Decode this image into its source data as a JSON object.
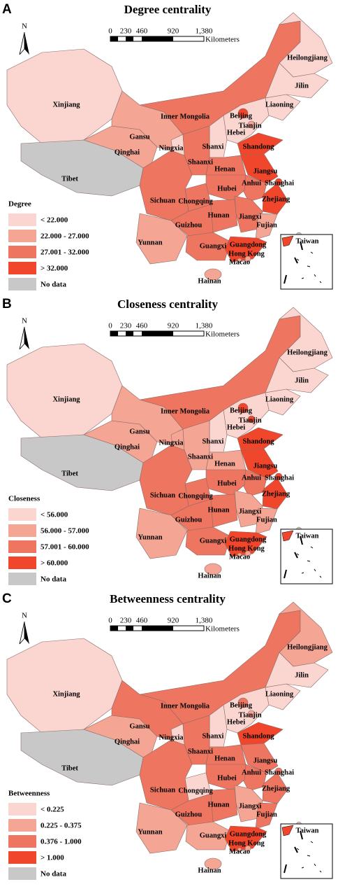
{
  "panels": [
    {
      "label": "A",
      "title": "Degree centrality",
      "north": "N",
      "scale": {
        "ticks": [
          "0",
          "230",
          "460",
          "920",
          "1,380"
        ],
        "unit": "Kilometers"
      },
      "legend": {
        "title": "Degree",
        "items": [
          {
            "label": "< 22.000",
            "color": "#fbd6d0"
          },
          {
            "label": "22.000 - 27.000",
            "color": "#f5a594"
          },
          {
            "label": "27.001 - 32.000",
            "color": "#ee7560"
          },
          {
            "label": "> 32.000",
            "color": "#f0462c"
          },
          {
            "label": "No data",
            "color": "#c8c8c8"
          }
        ]
      },
      "regions": [
        {
          "name": "Xinjiang",
          "color": "#fbd6d0"
        },
        {
          "name": "Tibet",
          "color": "#c8c8c8"
        },
        {
          "name": "Qinghai",
          "color": "#f5a594"
        },
        {
          "name": "Gansu",
          "color": "#f5a594"
        },
        {
          "name": "Inner Mongolia",
          "color": "#ee7560"
        },
        {
          "name": "Heilongjiang",
          "color": "#fbd6d0"
        },
        {
          "name": "Jilin",
          "color": "#fbd6d0"
        },
        {
          "name": "Liaoning",
          "color": "#fbd6d0"
        },
        {
          "name": "Hebei",
          "color": "#fbd6d0"
        },
        {
          "name": "Beijing",
          "color": "#f0462c"
        },
        {
          "name": "Tianjin",
          "color": "#f5a594"
        },
        {
          "name": "Shanxi",
          "color": "#fbd6d0"
        },
        {
          "name": "Ningxia",
          "color": "#fbd6d0"
        },
        {
          "name": "Shaanxi",
          "color": "#ee7560"
        },
        {
          "name": "Shandong",
          "color": "#f0462c"
        },
        {
          "name": "Henan",
          "color": "#ee7560"
        },
        {
          "name": "Jiangsu",
          "color": "#f0462c"
        },
        {
          "name": "Anhui",
          "color": "#ee7560"
        },
        {
          "name": "Shanghai",
          "color": "#f0462c"
        },
        {
          "name": "Zhejiang",
          "color": "#f0462c"
        },
        {
          "name": "Hubei",
          "color": "#ee7560"
        },
        {
          "name": "Chongqing",
          "color": "#ee7560"
        },
        {
          "name": "Sichuan",
          "color": "#ee7560"
        },
        {
          "name": "Hunan",
          "color": "#ee7560"
        },
        {
          "name": "Jiangxi",
          "color": "#ee7560"
        },
        {
          "name": "Fujian",
          "color": "#f5a594"
        },
        {
          "name": "Guizhou",
          "color": "#ee7560"
        },
        {
          "name": "Yunnan",
          "color": "#f5a594"
        },
        {
          "name": "Guangxi",
          "color": "#ee7560"
        },
        {
          "name": "Guangdong",
          "color": "#f0462c"
        },
        {
          "name": "Hainan",
          "color": "#f5a594"
        },
        {
          "name": "Taiwan",
          "color": "#c8c8c8"
        },
        {
          "name": "Hong Kong",
          "color": "#f5a594"
        },
        {
          "name": "Macao",
          "color": "#f5a594"
        }
      ]
    },
    {
      "label": "B",
      "title": "Closeness centrality",
      "north": "N",
      "scale": {
        "ticks": [
          "0",
          "230",
          "460",
          "920",
          "1,380"
        ],
        "unit": "Kilometers"
      },
      "legend": {
        "title": "Closeness",
        "items": [
          {
            "label": "< 56.000",
            "color": "#fbd6d0"
          },
          {
            "label": "56.000 - 57.000",
            "color": "#f5a594"
          },
          {
            "label": "57.001 - 60.000",
            "color": "#ee7560"
          },
          {
            "label": "> 60.000",
            "color": "#f0462c"
          },
          {
            "label": "No data",
            "color": "#c8c8c8"
          }
        ]
      },
      "regions": [
        {
          "name": "Xinjiang",
          "color": "#fbd6d0"
        },
        {
          "name": "Tibet",
          "color": "#c8c8c8"
        },
        {
          "name": "Qinghai",
          "color": "#f5a594"
        },
        {
          "name": "Gansu",
          "color": "#f5a594"
        },
        {
          "name": "Inner Mongolia",
          "color": "#ee7560"
        },
        {
          "name": "Heilongjiang",
          "color": "#fbd6d0"
        },
        {
          "name": "Jilin",
          "color": "#fbd6d0"
        },
        {
          "name": "Liaoning",
          "color": "#fbd6d0"
        },
        {
          "name": "Hebei",
          "color": "#fbd6d0"
        },
        {
          "name": "Beijing",
          "color": "#f0462c"
        },
        {
          "name": "Tianjin",
          "color": "#f0462c"
        },
        {
          "name": "Shanxi",
          "color": "#fbd6d0"
        },
        {
          "name": "Ningxia",
          "color": "#f5a594"
        },
        {
          "name": "Shaanxi",
          "color": "#f5a594"
        },
        {
          "name": "Shandong",
          "color": "#f0462c"
        },
        {
          "name": "Henan",
          "color": "#f5a594"
        },
        {
          "name": "Jiangsu",
          "color": "#f0462c"
        },
        {
          "name": "Anhui",
          "color": "#ee7560"
        },
        {
          "name": "Shanghai",
          "color": "#f0462c"
        },
        {
          "name": "Zhejiang",
          "color": "#f0462c"
        },
        {
          "name": "Hubei",
          "color": "#ee7560"
        },
        {
          "name": "Chongqing",
          "color": "#ee7560"
        },
        {
          "name": "Sichuan",
          "color": "#ee7560"
        },
        {
          "name": "Hunan",
          "color": "#ee7560"
        },
        {
          "name": "Jiangxi",
          "color": "#f5a594"
        },
        {
          "name": "Fujian",
          "color": "#f5a594"
        },
        {
          "name": "Guizhou",
          "color": "#ee7560"
        },
        {
          "name": "Yunnan",
          "color": "#f5a594"
        },
        {
          "name": "Guangxi",
          "color": "#ee7560"
        },
        {
          "name": "Guangdong",
          "color": "#f0462c"
        },
        {
          "name": "Hainan",
          "color": "#f5a594"
        },
        {
          "name": "Taiwan",
          "color": "#c8c8c8"
        },
        {
          "name": "Hong Kong",
          "color": "#f5a594"
        },
        {
          "name": "Macao",
          "color": "#f5a594"
        }
      ]
    },
    {
      "label": "C",
      "title": "Betweenness centrality",
      "north": "N",
      "scale": {
        "ticks": [
          "0",
          "230",
          "460",
          "920",
          "1,380"
        ],
        "unit": "Kilometers"
      },
      "legend": {
        "title": "Betweenness",
        "items": [
          {
            "label": "< 0.225",
            "color": "#fbd6d0"
          },
          {
            "label": "0.225 - 0.375",
            "color": "#f5a594"
          },
          {
            "label": "0.376 - 1.000",
            "color": "#ee7560"
          },
          {
            "label": "> 1.000",
            "color": "#f0462c"
          },
          {
            "label": "No data",
            "color": "#c8c8c8"
          }
        ]
      },
      "regions": [
        {
          "name": "Xinjiang",
          "color": "#fbd6d0"
        },
        {
          "name": "Tibet",
          "color": "#c8c8c8"
        },
        {
          "name": "Qinghai",
          "color": "#f5a594"
        },
        {
          "name": "Gansu",
          "color": "#ee7560"
        },
        {
          "name": "Inner Mongolia",
          "color": "#ee7560"
        },
        {
          "name": "Heilongjiang",
          "color": "#f5a594"
        },
        {
          "name": "Jilin",
          "color": "#fbd6d0"
        },
        {
          "name": "Liaoning",
          "color": "#fbd6d0"
        },
        {
          "name": "Hebei",
          "color": "#fbd6d0"
        },
        {
          "name": "Beijing",
          "color": "#ee7560"
        },
        {
          "name": "Tianjin",
          "color": "#f5a594"
        },
        {
          "name": "Shanxi",
          "color": "#fbd6d0"
        },
        {
          "name": "Ningxia",
          "color": "#fbd6d0"
        },
        {
          "name": "Shaanxi",
          "color": "#ee7560"
        },
        {
          "name": "Shandong",
          "color": "#f0462c"
        },
        {
          "name": "Henan",
          "color": "#ee7560"
        },
        {
          "name": "Jiangsu",
          "color": "#ee7560"
        },
        {
          "name": "Anhui",
          "color": "#ee7560"
        },
        {
          "name": "Shanghai",
          "color": "#ee7560"
        },
        {
          "name": "Zhejiang",
          "color": "#ee7560"
        },
        {
          "name": "Hubei",
          "color": "#ee7560"
        },
        {
          "name": "Chongqing",
          "color": "#fbd6d0"
        },
        {
          "name": "Sichuan",
          "color": "#ee7560"
        },
        {
          "name": "Hunan",
          "color": "#ee7560"
        },
        {
          "name": "Jiangxi",
          "color": "#f5a594"
        },
        {
          "name": "Fujian",
          "color": "#ee7560"
        },
        {
          "name": "Guizhou",
          "color": "#ee7560"
        },
        {
          "name": "Yunnan",
          "color": "#f5a594"
        },
        {
          "name": "Guangxi",
          "color": "#f5a594"
        },
        {
          "name": "Guangdong",
          "color": "#f0462c"
        },
        {
          "name": "Hainan",
          "color": "#f5a594"
        },
        {
          "name": "Taiwan",
          "color": "#c8c8c8"
        },
        {
          "name": "Hong Kong",
          "color": "#f5a594"
        },
        {
          "name": "Macao",
          "color": "#f5a594"
        }
      ]
    }
  ]
}
